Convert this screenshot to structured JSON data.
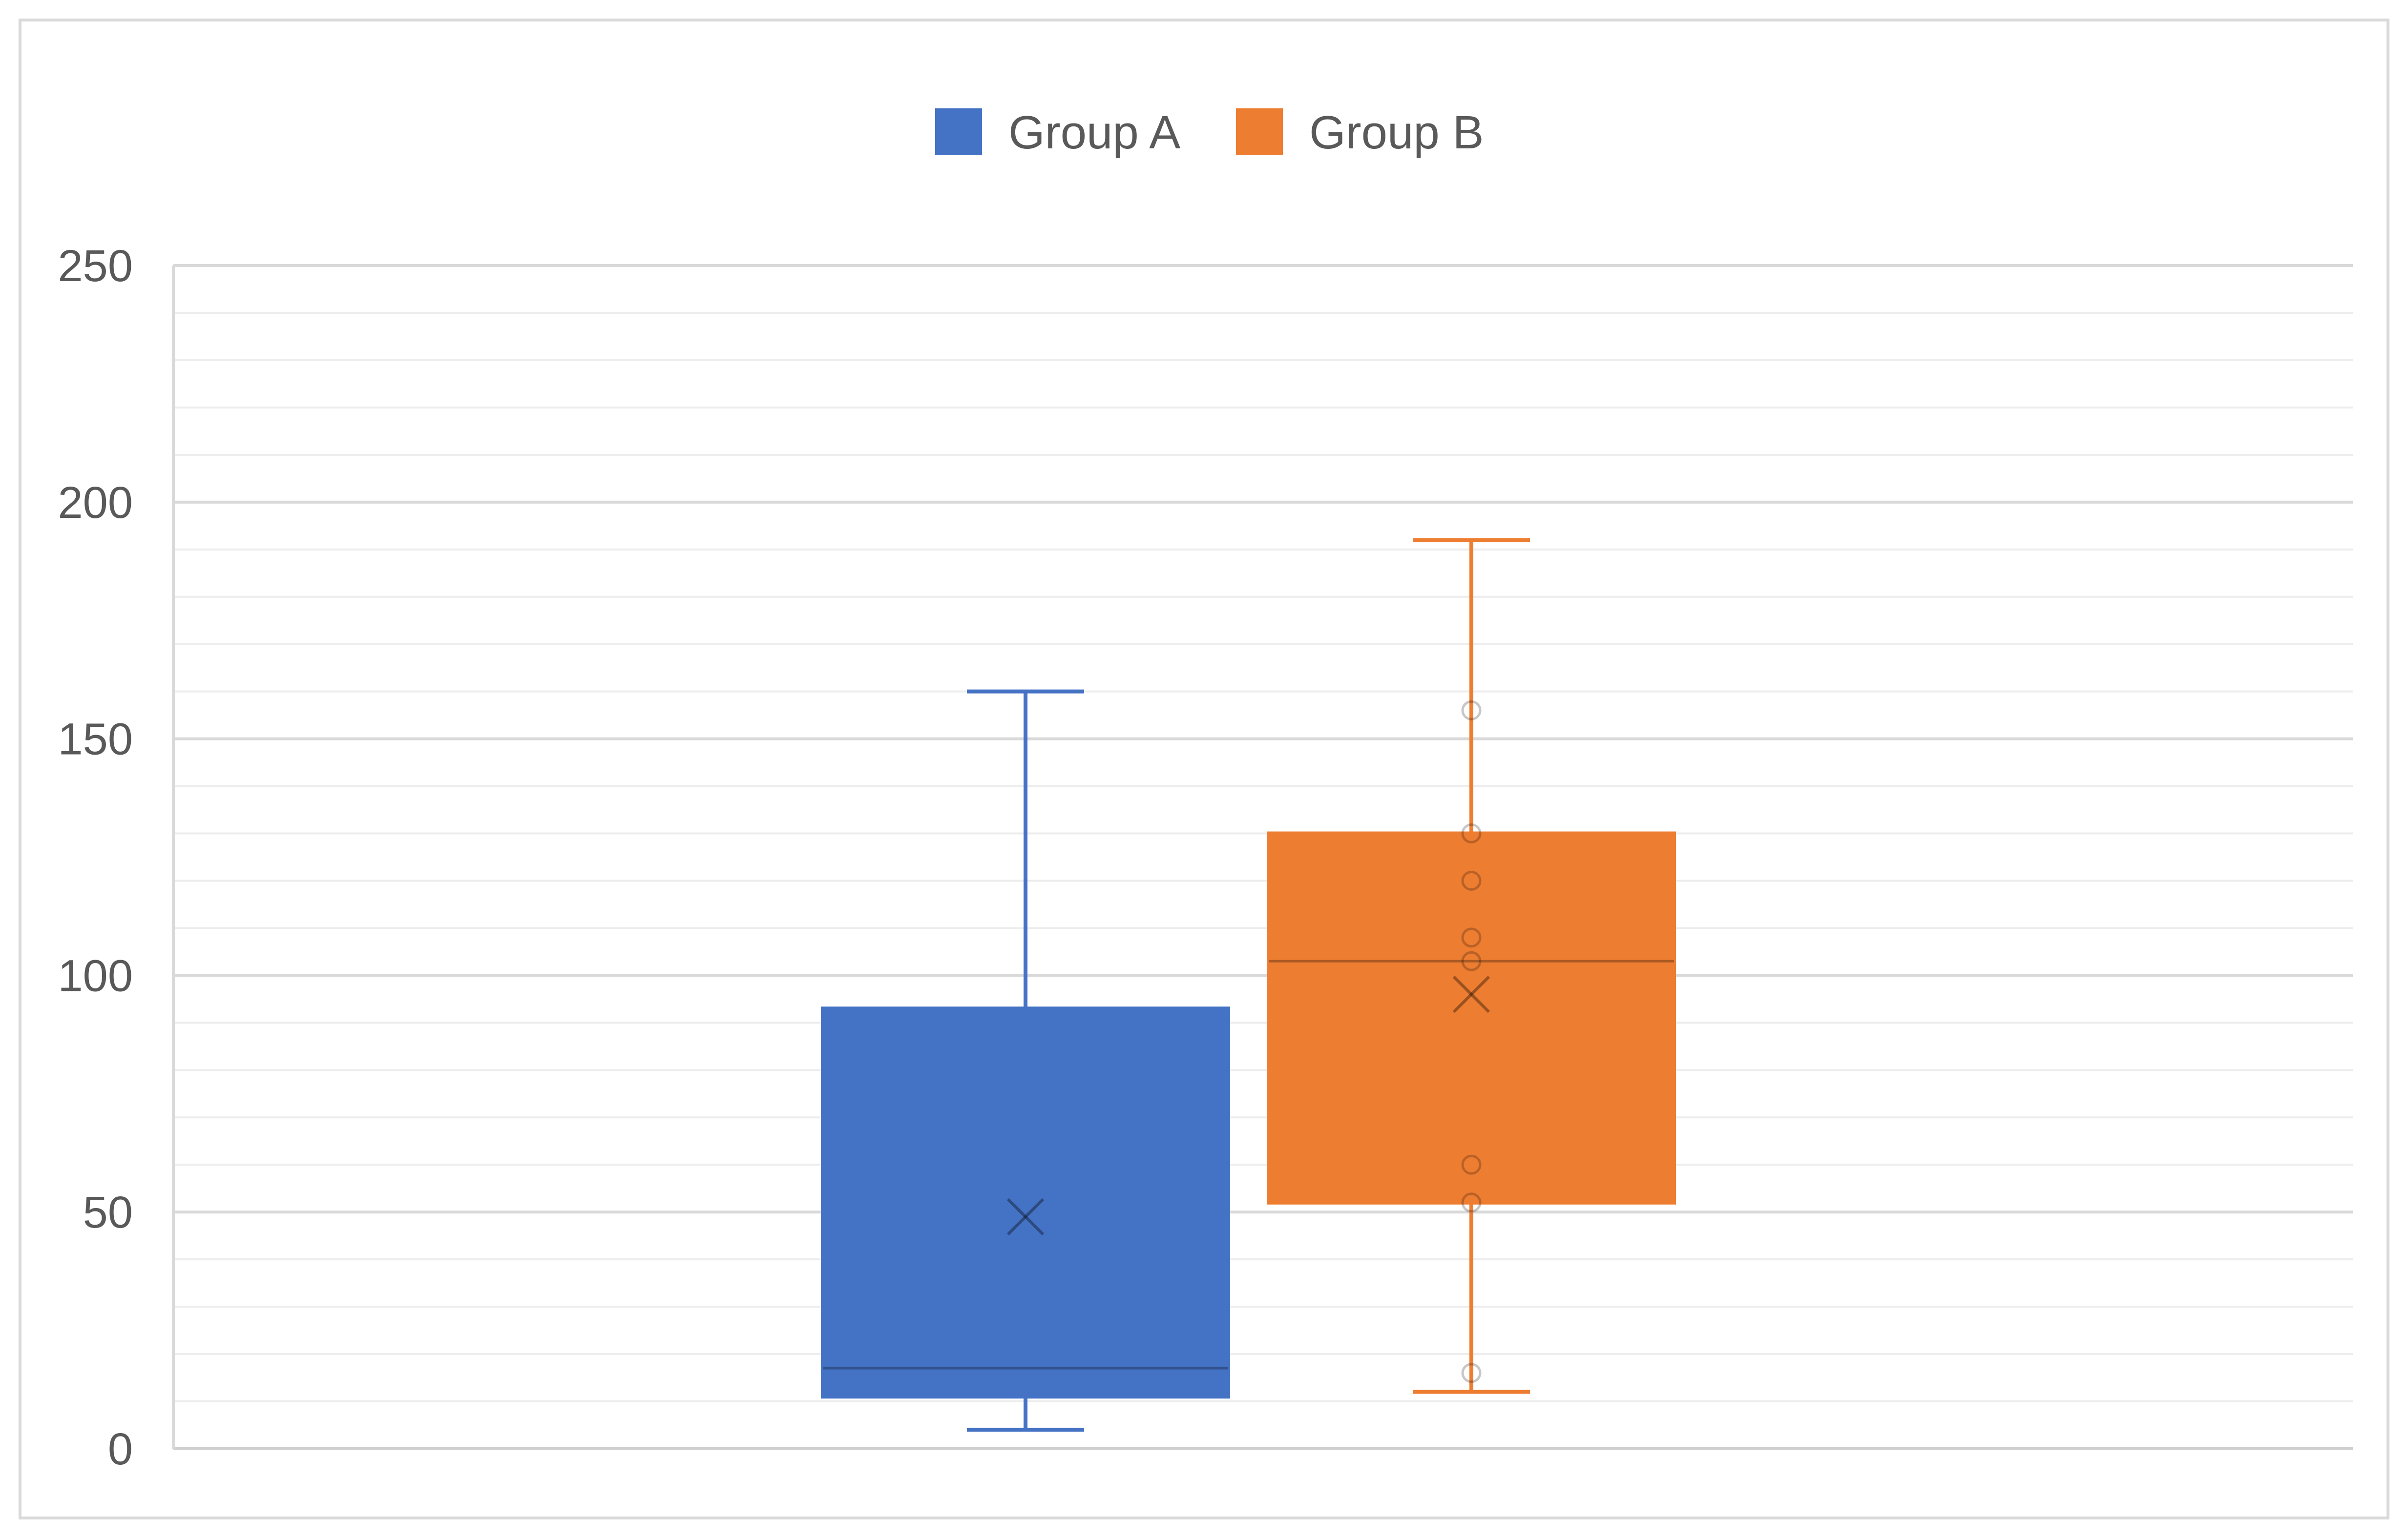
{
  "chart_data": {
    "type": "box",
    "title": "",
    "xlabel": "",
    "ylabel": "",
    "ylim": [
      0,
      250
    ],
    "yticks": [
      0,
      50,
      100,
      150,
      200,
      250
    ],
    "minor_step": 10,
    "grid": true,
    "legend_position": "top",
    "series": [
      {
        "name": "Group A",
        "color": "#4472C4",
        "whisker_min": 4,
        "q1": 11,
        "median": 17,
        "q3": 93,
        "whisker_max": 160,
        "mean": 49,
        "points": []
      },
      {
        "name": "Group B",
        "color": "#ED7D31",
        "whisker_min": 12,
        "q1": 52,
        "median": 103,
        "q3": 130,
        "whisker_max": 192,
        "mean": 96,
        "points": [
          16,
          52,
          60,
          103,
          108,
          120,
          130,
          156
        ]
      }
    ]
  }
}
